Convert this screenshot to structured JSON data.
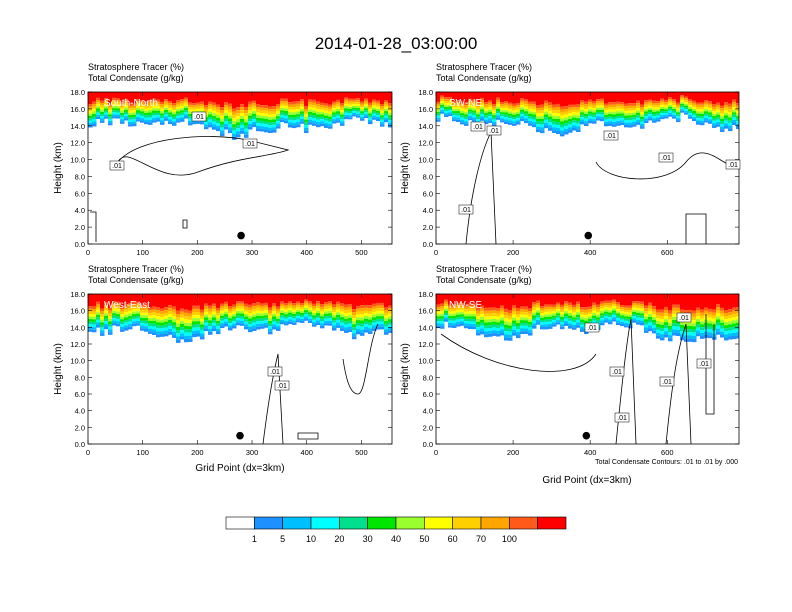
{
  "chart_data": {
    "type": "heatmap",
    "title": "2014-01-28_03:00:00",
    "colorbar": {
      "levels": [
        "1",
        "5",
        "10",
        "20",
        "30",
        "40",
        "50",
        "60",
        "70",
        "100"
      ],
      "colors": [
        "#ffffff",
        "#1e90ff",
        "#00bfff",
        "#00ffff",
        "#00e08c",
        "#00e600",
        "#9aff2f",
        "#ffff00",
        "#ffd000",
        "#ffa500",
        "#ff5a1a",
        "#ff0000"
      ]
    },
    "contour_note": "Total Condensate Contours: .01 to .01 by .000",
    "panels": [
      {
        "id": "south-north",
        "label": "South-North",
        "title1": "Stratosphere Tracer   (%)",
        "title2": "Total Condensate   (g/kg)",
        "ylabel": "Height (km)",
        "xlabel": "",
        "xlim": [
          0,
          556
        ],
        "ylim": [
          0,
          18
        ],
        "xticks": [
          "0",
          "100",
          "200",
          "300",
          "400",
          "500"
        ],
        "xtick_values": [
          0,
          100,
          200,
          300,
          400,
          500
        ],
        "yticks": [
          "0.0",
          "2.0",
          "4.0",
          "6.0",
          "8.0",
          "10.0",
          "12.0",
          "14.0",
          "16.0",
          "18.0"
        ],
        "marker": {
          "x": 280,
          "y": 1.0
        },
        "tropopause_height_km": 13.6,
        "contour_labels": [
          ".01",
          ".01",
          ".01"
        ]
      },
      {
        "id": "sw-ne",
        "label": "SW-NE",
        "title1": "Stratosphere Tracer   (%)",
        "title2": "Total Condensate   (g/kg)",
        "ylabel": "Height (km)",
        "xlabel": "",
        "xlim": [
          0,
          786
        ],
        "ylim": [
          0,
          18
        ],
        "xticks": [
          "0",
          "200",
          "400",
          "600"
        ],
        "xtick_values": [
          0,
          200,
          400,
          600
        ],
        "yticks": [
          "0.0",
          "2.0",
          "4.0",
          "6.0",
          "8.0",
          "10.0",
          "12.0",
          "14.0",
          "16.0",
          "18.0"
        ],
        "marker": {
          "x": 395,
          "y": 1.0
        },
        "tropopause_height_km": 13.8,
        "contour_labels": [
          ".01",
          ".01",
          ".01",
          ".01",
          ".01",
          ".01"
        ]
      },
      {
        "id": "west-east",
        "label": "West-East",
        "title1": "Stratosphere Tracer   (%)",
        "title2": "Total Condensate   (g/kg)",
        "ylabel": "Height (km)",
        "xlabel": "Grid Point (dx=3km)",
        "xlim": [
          0,
          556
        ],
        "ylim": [
          0,
          18
        ],
        "xticks": [
          "0",
          "100",
          "200",
          "300",
          "400",
          "500"
        ],
        "xtick_values": [
          0,
          100,
          200,
          300,
          400,
          500
        ],
        "yticks": [
          "0.0",
          "2.0",
          "4.0",
          "6.0",
          "8.0",
          "10.0",
          "12.0",
          "14.0",
          "16.0",
          "18.0"
        ],
        "marker": {
          "x": 278,
          "y": 1.0
        },
        "tropopause_height_km": 13.2,
        "contour_labels": [
          ".01",
          ".01"
        ]
      },
      {
        "id": "nw-se",
        "label": "NW-SE",
        "title1": "Stratosphere Tracer   (%)",
        "title2": "Total Condensate   (g/kg)",
        "ylabel": "Height (km)",
        "xlabel": "Grid Point (dx=3km)",
        "xlim": [
          0,
          786
        ],
        "ylim": [
          0,
          18
        ],
        "xticks": [
          "0",
          "200",
          "400",
          "600"
        ],
        "xtick_values": [
          0,
          200,
          400,
          600
        ],
        "yticks": [
          "0.0",
          "2.0",
          "4.0",
          "6.0",
          "8.0",
          "10.0",
          "12.0",
          "14.0",
          "16.0",
          "18.0"
        ],
        "marker": {
          "x": 390,
          "y": 1.0
        },
        "tropopause_height_km": 12.8,
        "contour_labels": [
          ".01",
          ".01",
          ".01",
          ".01",
          ".01",
          ".01"
        ]
      }
    ]
  }
}
